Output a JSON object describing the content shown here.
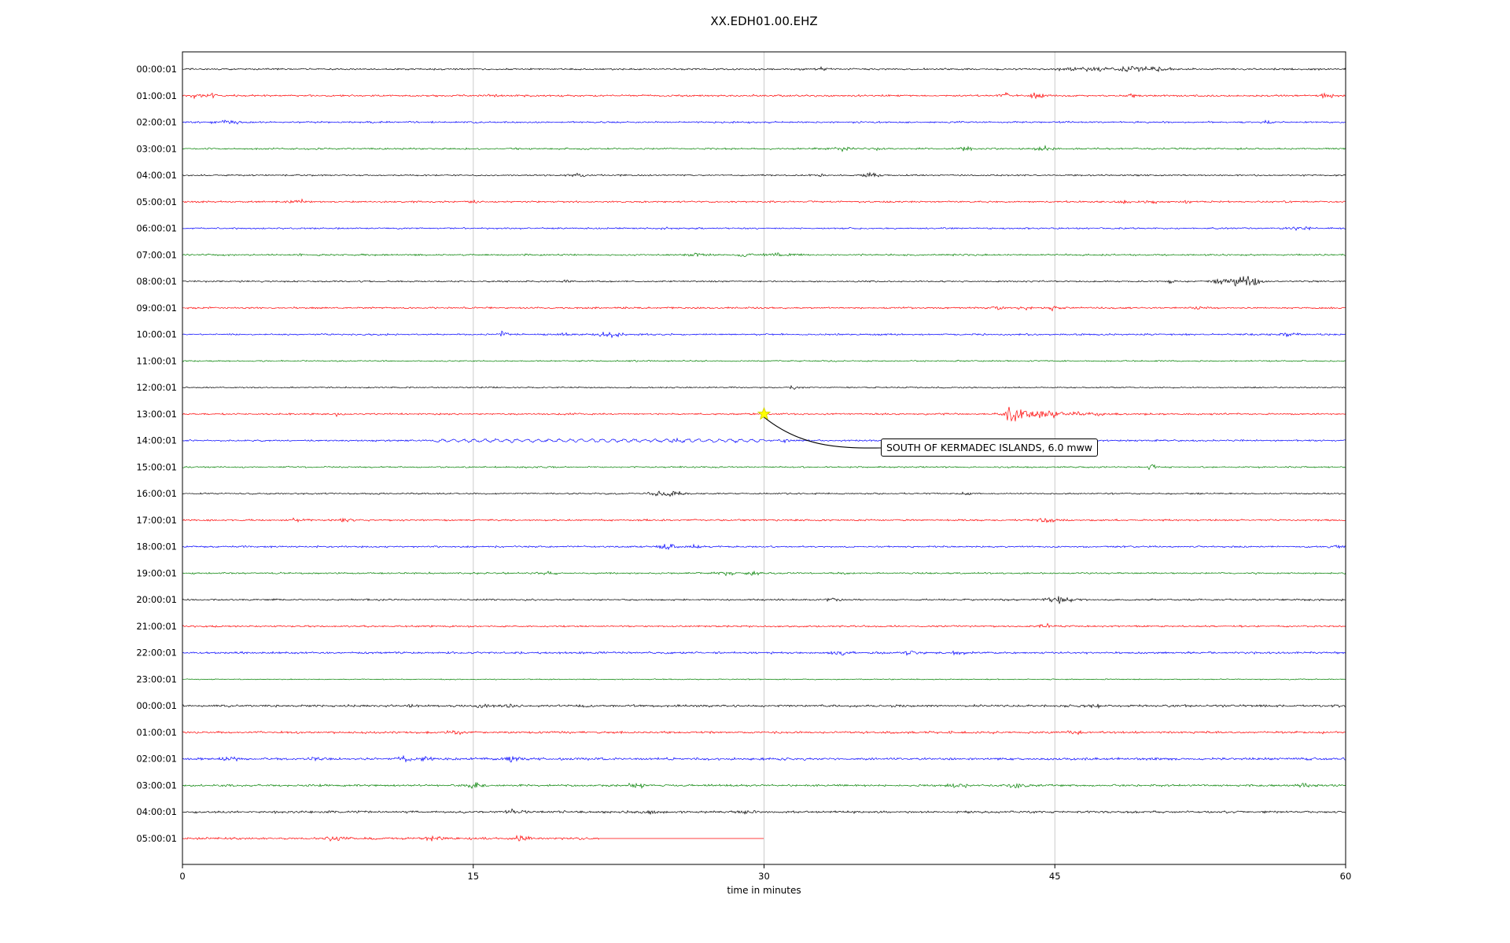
{
  "chart_data": {
    "type": "line",
    "subtype": "helicorder-seismogram-dayplot",
    "title": "XX.EDH01.00.EHZ",
    "xlabel": "time in minutes",
    "xlim": [
      0,
      60
    ],
    "x_ticks": [
      0,
      15,
      30,
      45,
      60
    ],
    "grid": "vertical gridlines at 15, 30, 45",
    "legend": "none",
    "color_cycle": [
      "#000000",
      "#ff0000",
      "#0000ff",
      "#008000"
    ],
    "annotation": {
      "text": "SOUTH OF KERMADEC ISLANDS, 6.0 mww",
      "row_label": "13:00:01",
      "marker_minute": 30,
      "marker_color": "#ffff00"
    },
    "rows": [
      {
        "label": "00:00:01",
        "color": "#000000",
        "base": 1.0,
        "duration": 60,
        "bursts": [
          [
            33,
            1.2,
            0.3
          ],
          [
            46,
            1.8,
            0.5
          ],
          [
            47.5,
            2.2,
            0.5
          ],
          [
            49,
            2.6,
            0.6
          ],
          [
            50.5,
            2.0,
            0.4
          ]
        ]
      },
      {
        "label": "01:00:01",
        "color": "#ff0000",
        "base": 1.1,
        "duration": 60,
        "bursts": [
          [
            0.7,
            2.8,
            0.15
          ],
          [
            1.5,
            2.8,
            0.15
          ],
          [
            16,
            1.5,
            0.2
          ],
          [
            42.5,
            2.2,
            0.2
          ],
          [
            44,
            2.8,
            0.25
          ],
          [
            49,
            1.6,
            0.2
          ],
          [
            59,
            2.8,
            0.2
          ]
        ]
      },
      {
        "label": "02:00:01",
        "color": "#0000ff",
        "base": 1.0,
        "duration": 60,
        "bursts": [
          [
            2,
            1.8,
            0.3
          ],
          [
            2.8,
            1.6,
            0.2
          ],
          [
            56,
            1.4,
            0.2
          ]
        ]
      },
      {
        "label": "03:00:01",
        "color": "#008000",
        "base": 1.0,
        "duration": 60,
        "bursts": [
          [
            34,
            2.0,
            0.3
          ],
          [
            36,
            1.4,
            0.2
          ],
          [
            40.5,
            2.4,
            0.25
          ],
          [
            44.5,
            2.6,
            0.3
          ]
        ]
      },
      {
        "label": "04:00:01",
        "color": "#000000",
        "base": 0.9,
        "duration": 60,
        "bursts": [
          [
            20.5,
            2.4,
            0.25
          ],
          [
            33,
            1.4,
            0.2
          ],
          [
            35.5,
            2.6,
            0.3
          ]
        ]
      },
      {
        "label": "05:00:01",
        "color": "#ff0000",
        "base": 1.0,
        "duration": 60,
        "bursts": [
          [
            6,
            1.8,
            0.3
          ],
          [
            15,
            1.4,
            0.15
          ],
          [
            48.5,
            2.4,
            0.25
          ],
          [
            50,
            2.2,
            0.2
          ],
          [
            52,
            1.5,
            0.2
          ]
        ]
      },
      {
        "label": "06:00:01",
        "color": "#0000ff",
        "base": 0.9,
        "duration": 60,
        "bursts": [
          [
            25,
            1.3,
            0.2
          ],
          [
            57.5,
            2.8,
            0.4
          ]
        ]
      },
      {
        "label": "07:00:01",
        "color": "#008000",
        "base": 1.0,
        "duration": 60,
        "bursts": [
          [
            26.5,
            2.0,
            0.3
          ],
          [
            29,
            1.8,
            0.25
          ],
          [
            30.5,
            2.2,
            0.3
          ],
          [
            31.5,
            1.8,
            0.2
          ]
        ]
      },
      {
        "label": "08:00:01",
        "color": "#000000",
        "base": 0.9,
        "duration": 60,
        "bursts": [
          [
            20,
            2.0,
            0.2
          ],
          [
            51,
            1.8,
            0.2
          ],
          [
            53.5,
            3.2,
            0.3
          ],
          [
            54.5,
            6.0,
            0.45
          ],
          [
            55.3,
            2.8,
            0.3
          ]
        ]
      },
      {
        "label": "09:00:01",
        "color": "#ff0000",
        "base": 1.0,
        "duration": 60,
        "bursts": [
          [
            42,
            2.0,
            0.3
          ],
          [
            43.5,
            1.6,
            0.2
          ],
          [
            45,
            2.4,
            0.3
          ],
          [
            52.5,
            2.0,
            0.25
          ]
        ]
      },
      {
        "label": "10:00:01",
        "color": "#0000ff",
        "base": 1.0,
        "duration": 60,
        "bursts": [
          [
            16.5,
            2.8,
            0.3
          ],
          [
            19.8,
            1.6,
            0.2
          ],
          [
            22,
            2.6,
            0.5
          ],
          [
            57,
            1.5,
            0.3
          ]
        ]
      },
      {
        "label": "11:00:01",
        "color": "#008000",
        "base": 0.8,
        "duration": 60,
        "bursts": []
      },
      {
        "label": "12:00:01",
        "color": "#000000",
        "base": 0.8,
        "duration": 60,
        "bursts": [
          [
            31.5,
            1.4,
            0.15
          ]
        ]
      },
      {
        "label": "13:00:01",
        "color": "#ff0000",
        "base": 1.0,
        "duration": 60,
        "bursts": [
          [
            8,
            1.5,
            0.2
          ],
          [
            42.8,
            6.5,
            0.3
          ],
          [
            43.8,
            3.2,
            0.9
          ],
          [
            45.5,
            1.8,
            1.4
          ]
        ]
      },
      {
        "label": "14:00:01",
        "color": "#0000ff",
        "base": 1.0,
        "duration": 60,
        "wiggle": [
          13,
          30,
          1.5,
          0.55
        ],
        "bursts": [
          [
            25.5,
            1.6,
            0.3
          ],
          [
            31,
            1.8,
            0.2
          ]
        ]
      },
      {
        "label": "15:00:01",
        "color": "#008000",
        "base": 0.9,
        "duration": 60,
        "bursts": [
          [
            50,
            1.8,
            0.25
          ]
        ]
      },
      {
        "label": "16:00:01",
        "color": "#000000",
        "base": 0.9,
        "duration": 60,
        "bursts": [
          [
            24.5,
            2.4,
            0.3
          ],
          [
            25.5,
            2.8,
            0.35
          ],
          [
            40.5,
            1.6,
            0.2
          ]
        ]
      },
      {
        "label": "17:00:01",
        "color": "#ff0000",
        "base": 1.0,
        "duration": 60,
        "bursts": [
          [
            6,
            2.2,
            0.25
          ],
          [
            8.5,
            2.4,
            0.25
          ],
          [
            44.5,
            2.2,
            0.3
          ]
        ]
      },
      {
        "label": "18:00:01",
        "color": "#0000ff",
        "base": 1.0,
        "duration": 60,
        "bursts": [
          [
            25,
            3.2,
            0.3
          ],
          [
            26.5,
            1.8,
            0.2
          ],
          [
            59.5,
            1.8,
            0.2
          ]
        ]
      },
      {
        "label": "19:00:01",
        "color": "#008000",
        "base": 1.0,
        "duration": 60,
        "bursts": [
          [
            19,
            2.4,
            0.3
          ],
          [
            28,
            2.2,
            0.3
          ],
          [
            29.5,
            2.2,
            0.25
          ],
          [
            34,
            1.5,
            0.2
          ]
        ]
      },
      {
        "label": "20:00:01",
        "color": "#000000",
        "base": 1.0,
        "duration": 60,
        "bursts": [
          [
            33.5,
            2.4,
            0.2
          ],
          [
            45,
            4.2,
            0.3
          ],
          [
            45.7,
            2.4,
            0.3
          ]
        ]
      },
      {
        "label": "21:00:01",
        "color": "#ff0000",
        "base": 1.0,
        "duration": 60,
        "bursts": [
          [
            44.5,
            2.8,
            0.25
          ]
        ]
      },
      {
        "label": "22:00:01",
        "color": "#0000ff",
        "base": 1.2,
        "duration": 60,
        "bursts": [
          [
            34,
            2.2,
            0.4
          ],
          [
            37.5,
            2.0,
            0.4
          ],
          [
            40,
            1.6,
            0.3
          ]
        ]
      },
      {
        "label": "23:00:01",
        "color": "#008000",
        "base": 0.6,
        "duration": 60,
        "bursts": []
      },
      {
        "label": "00:00:01",
        "color": "#000000",
        "base": 1.3,
        "duration": 60,
        "bursts": [
          [
            12,
            1.8,
            0.2
          ],
          [
            15.5,
            2.2,
            0.25
          ],
          [
            17,
            2.0,
            0.2
          ],
          [
            47,
            1.8,
            0.3
          ]
        ]
      },
      {
        "label": "01:00:01",
        "color": "#ff0000",
        "base": 1.3,
        "duration": 60,
        "bursts": [
          [
            14,
            1.5,
            0.3
          ],
          [
            46,
            1.8,
            0.4
          ]
        ]
      },
      {
        "label": "02:00:01",
        "color": "#0000ff",
        "base": 1.4,
        "duration": 60,
        "bursts": [
          [
            2.5,
            1.8,
            0.3
          ],
          [
            7,
            1.8,
            0.3
          ],
          [
            11.5,
            2.4,
            0.3
          ],
          [
            12.5,
            1.8,
            0.2
          ],
          [
            17,
            2.8,
            0.25
          ]
        ]
      },
      {
        "label": "03:00:01",
        "color": "#008000",
        "base": 1.2,
        "duration": 60,
        "bursts": [
          [
            15,
            2.2,
            0.3
          ],
          [
            23.5,
            2.6,
            0.3
          ],
          [
            40,
            1.8,
            0.4
          ],
          [
            43,
            2.0,
            0.3
          ],
          [
            58,
            1.6,
            0.3
          ]
        ]
      },
      {
        "label": "04:00:01",
        "color": "#000000",
        "base": 1.3,
        "duration": 60,
        "bursts": [
          [
            17,
            2.0,
            0.3
          ],
          [
            24,
            2.0,
            0.3
          ],
          [
            29,
            1.6,
            0.3
          ]
        ]
      },
      {
        "label": "05:00:01",
        "color": "#ff0000",
        "base": 1.3,
        "duration": 30,
        "flat_from": 21.5,
        "bursts": [
          [
            8,
            1.8,
            0.4
          ],
          [
            13,
            1.6,
            0.3
          ],
          [
            17.5,
            2.2,
            0.3
          ]
        ]
      }
    ]
  }
}
